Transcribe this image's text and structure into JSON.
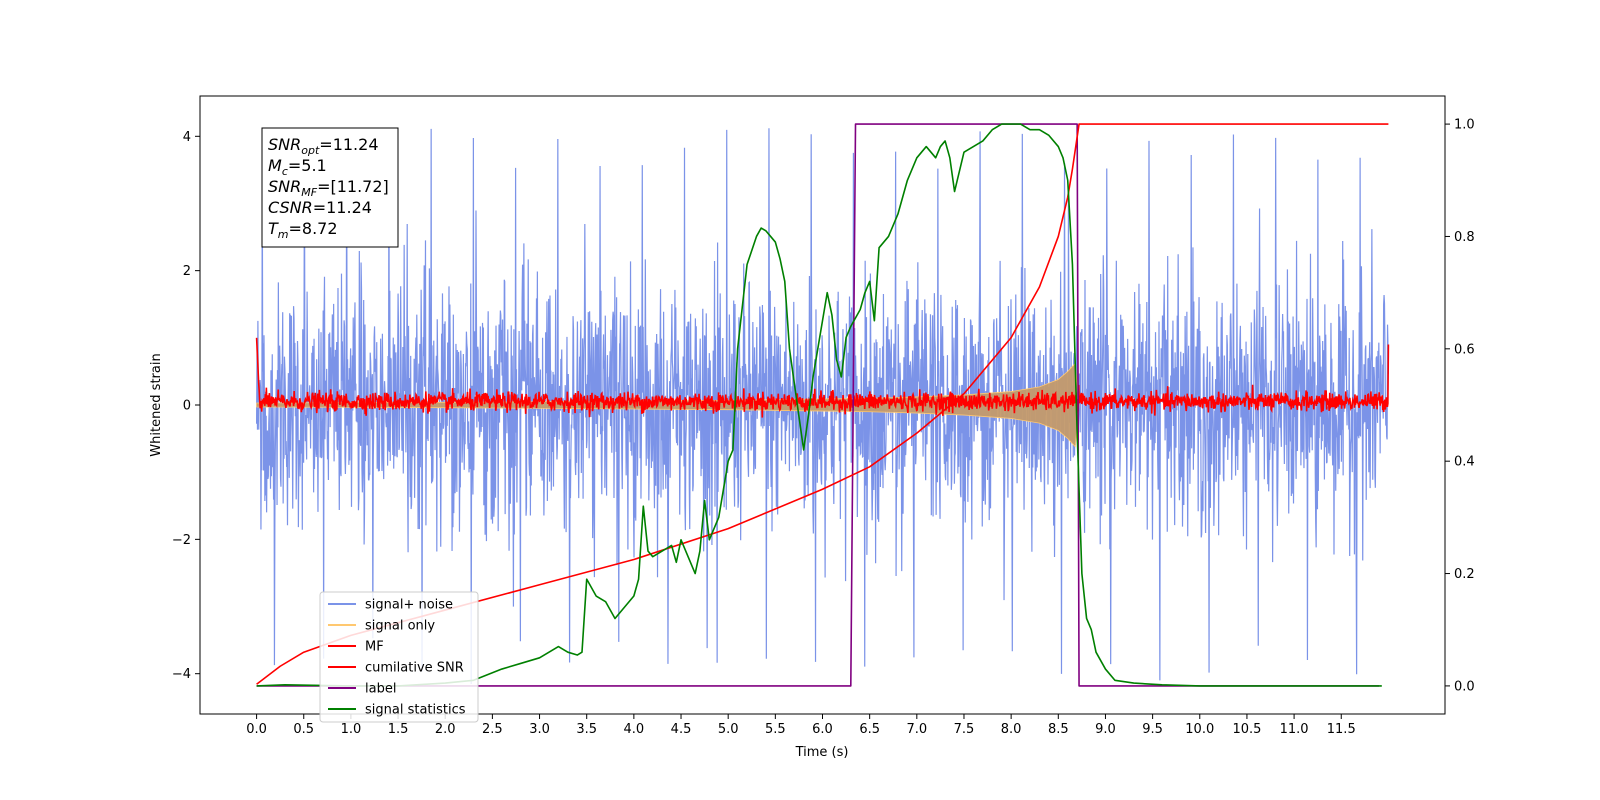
{
  "chart_data": {
    "type": "line",
    "title": "",
    "xlabel": "Time (s)",
    "ylabel_left": "Whitened strain",
    "ylabel_right": "",
    "xlim": [
      -0.6,
      12.6
    ],
    "ylim_left": [
      -4.6,
      4.6
    ],
    "ylim_right": [
      -0.05,
      1.05
    ],
    "x_ticks": [
      0.0,
      0.5,
      1.0,
      1.5,
      2.0,
      2.5,
      3.0,
      3.5,
      4.0,
      4.5,
      5.0,
      5.5,
      6.0,
      6.5,
      7.0,
      7.5,
      8.0,
      8.5,
      9.0,
      9.5,
      10.0,
      10.5,
      11.0,
      11.5
    ],
    "x_tick_labels": [
      "0.0",
      "0.5",
      "1.0",
      "1.5",
      "2.0",
      "2.5",
      "3.0",
      "3.5",
      "4.0",
      "4.5",
      "5.0",
      "5.5",
      "6.0",
      "6.5",
      "7.0",
      "7.5",
      "8.0",
      "8.5",
      "9.0",
      "9.5",
      "10.0",
      "10.5",
      "11.0",
      "11.5"
    ],
    "y_ticks_left": [
      -4,
      -2,
      0,
      2,
      4
    ],
    "y_tick_labels_left": [
      "−4",
      "−2",
      "0",
      "2",
      "4"
    ],
    "y_ticks_right": [
      0.0,
      0.2,
      0.4,
      0.6,
      0.8,
      1.0
    ],
    "y_tick_labels_right": [
      "0.0",
      "0.2",
      "0.4",
      "0.6",
      "0.8",
      "1.0"
    ],
    "grid": false,
    "legend_position": "bottom-left",
    "annotation": {
      "lines": [
        {
          "base": "SNR",
          "sub": "opt",
          "value": "=11.24"
        },
        {
          "base": "M",
          "sub": "c",
          "value": "=5.1"
        },
        {
          "base": "SNR",
          "sub": "MF",
          "value": "=[11.72]"
        },
        {
          "base": "CSNR",
          "sub": "",
          "value": "=11.24"
        },
        {
          "base": "T",
          "sub": "m",
          "value": "=8.72"
        }
      ]
    },
    "series": [
      {
        "name": "signal+ noise",
        "color": "#7b93e8",
        "axis": "left",
        "style": "noise",
        "x_range": [
          0.0,
          12.0
        ],
        "amplitude_std": 0.9,
        "peak_min": -4.2,
        "peak_max": 4.15
      },
      {
        "name": "signal only",
        "color": "#ffc870",
        "axis": "left",
        "style": "chirp-envelope",
        "x_range": [
          0.0,
          8.72
        ],
        "envelope": {
          "x": [
            0.0,
            2.0,
            4.0,
            5.0,
            6.0,
            6.5,
            7.0,
            7.5,
            8.0,
            8.3,
            8.5,
            8.6,
            8.68,
            8.72
          ],
          "y": [
            0.03,
            0.04,
            0.06,
            0.07,
            0.09,
            0.1,
            0.12,
            0.15,
            0.2,
            0.27,
            0.38,
            0.5,
            0.62,
            0.0
          ]
        }
      },
      {
        "name": "MF",
        "color": "#ff0000",
        "axis": "left",
        "style": "mf-noise",
        "x_range": [
          0.0,
          12.0
        ],
        "mean": 0.05,
        "amplitude_std": 0.07,
        "start_value": 1.0,
        "end_value": 0.9
      },
      {
        "name": "cumilative SNR",
        "color": "#ff0000",
        "axis": "right",
        "x": [
          0.0,
          0.25,
          0.5,
          1.0,
          2.0,
          3.0,
          4.0,
          5.0,
          6.0,
          6.5,
          7.0,
          7.5,
          8.0,
          8.3,
          8.5,
          8.6,
          8.65,
          8.72,
          12.0
        ],
        "y": [
          0.003,
          0.035,
          0.06,
          0.09,
          0.135,
          0.18,
          0.225,
          0.28,
          0.35,
          0.39,
          0.45,
          0.52,
          0.62,
          0.71,
          0.8,
          0.87,
          0.92,
          1.0,
          1.0
        ]
      },
      {
        "name": "label",
        "color": "#800080",
        "axis": "right",
        "x": [
          0.0,
          6.3,
          6.35,
          8.7,
          8.72,
          11.9
        ],
        "y": [
          0.0,
          0.0,
          1.0,
          1.0,
          0.0,
          0.0
        ]
      },
      {
        "name": "signal statistics",
        "color": "#008000",
        "axis": "right",
        "x": [
          0.0,
          0.3,
          0.6,
          1.0,
          1.5,
          2.0,
          2.3,
          2.6,
          2.8,
          3.0,
          3.2,
          3.3,
          3.4,
          3.45,
          3.5,
          3.6,
          3.7,
          3.8,
          3.9,
          4.0,
          4.05,
          4.1,
          4.15,
          4.2,
          4.3,
          4.4,
          4.45,
          4.5,
          4.6,
          4.65,
          4.7,
          4.75,
          4.8,
          4.9,
          5.0,
          5.05,
          5.1,
          5.2,
          5.3,
          5.35,
          5.4,
          5.45,
          5.5,
          5.55,
          5.6,
          5.65,
          5.7,
          5.75,
          5.8,
          5.85,
          5.9,
          5.95,
          6.0,
          6.05,
          6.1,
          6.15,
          6.2,
          6.25,
          6.3,
          6.4,
          6.45,
          6.5,
          6.55,
          6.6,
          6.7,
          6.8,
          6.9,
          7.0,
          7.05,
          7.1,
          7.15,
          7.2,
          7.25,
          7.3,
          7.35,
          7.4,
          7.5,
          7.6,
          7.7,
          7.8,
          7.9,
          8.0,
          8.1,
          8.2,
          8.3,
          8.4,
          8.5,
          8.55,
          8.6,
          8.65,
          8.7,
          8.75,
          8.8,
          8.85,
          8.9,
          9.0,
          9.1,
          9.3,
          9.6,
          10.0,
          11.0,
          11.93
        ],
        "y": [
          0.0,
          0.002,
          0.001,
          0.0,
          0.0,
          0.005,
          0.01,
          0.03,
          0.04,
          0.05,
          0.07,
          0.06,
          0.055,
          0.06,
          0.19,
          0.16,
          0.15,
          0.12,
          0.14,
          0.16,
          0.19,
          0.32,
          0.24,
          0.23,
          0.24,
          0.25,
          0.22,
          0.26,
          0.22,
          0.2,
          0.24,
          0.33,
          0.26,
          0.3,
          0.4,
          0.42,
          0.6,
          0.75,
          0.8,
          0.815,
          0.81,
          0.8,
          0.79,
          0.76,
          0.72,
          0.6,
          0.54,
          0.48,
          0.42,
          0.48,
          0.55,
          0.6,
          0.65,
          0.7,
          0.66,
          0.58,
          0.55,
          0.62,
          0.64,
          0.67,
          0.7,
          0.72,
          0.65,
          0.78,
          0.8,
          0.84,
          0.9,
          0.94,
          0.95,
          0.96,
          0.95,
          0.94,
          0.96,
          0.97,
          0.94,
          0.88,
          0.95,
          0.96,
          0.97,
          0.99,
          1.0,
          1.0,
          1.0,
          0.99,
          0.99,
          0.98,
          0.96,
          0.94,
          0.9,
          0.75,
          0.45,
          0.2,
          0.12,
          0.1,
          0.06,
          0.03,
          0.01,
          0.005,
          0.002,
          0.0,
          0.0,
          0.0
        ]
      }
    ]
  }
}
